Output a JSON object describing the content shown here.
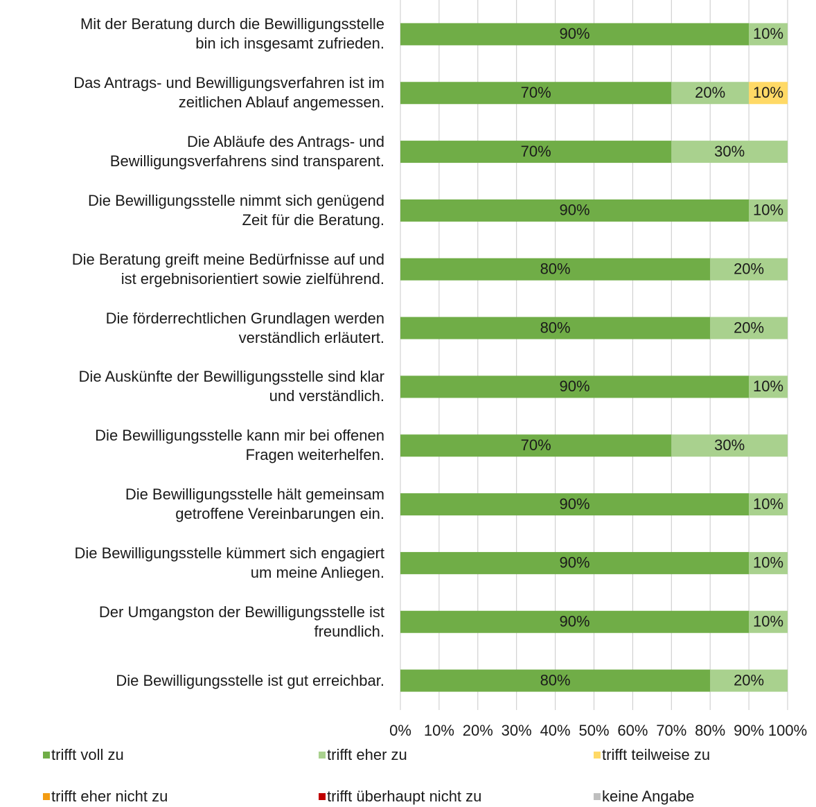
{
  "chart_data": {
    "type": "stacked-bar-horizontal",
    "categories": [
      "Mit der Beratung durch die Bewilligungsstelle\nbin ich insgesamt zufrieden.",
      "Das Antrags- und Bewilligungsverfahren ist im\nzeitlichen Ablauf angemessen.",
      "Die Abläufe des Antrags- und\nBewilligungsverfahrens sind transparent.",
      "Die Bewilligungsstelle nimmt sich genügend\nZeit für die Beratung.",
      "Die Beratung greift meine Bedürfnisse auf und\nist ergebnisorientiert sowie zielführend.",
      "Die förderrechtlichen Grundlagen werden\nverständlich erläutert.",
      "Die Auskünfte der Bewilligungsstelle sind klar\nund verständlich.",
      "Die Bewilligungsstelle kann mir bei offenen\nFragen weiterhelfen.",
      "Die Bewilligungsstelle hält gemeinsam\ngetroffene Vereinbarungen ein.",
      "Die Bewilligungsstelle kümmert sich engagiert\num meine Anliegen.",
      "Der Umgangston der Bewilligungsstelle ist\nfreundlich.",
      "Die Bewilligungsstelle ist gut erreichbar."
    ],
    "series": [
      {
        "name": "trifft voll zu",
        "color": "#70ad47",
        "values": [
          90,
          70,
          70,
          90,
          80,
          80,
          90,
          70,
          90,
          90,
          90,
          80
        ],
        "value_labels": [
          "90%",
          "70%",
          "70%",
          "90%",
          "80%",
          "80%",
          "90%",
          "70%",
          "90%",
          "90%",
          "90%",
          "80%"
        ]
      },
      {
        "name": "trifft eher zu",
        "color": "#a9d18e",
        "values": [
          10,
          20,
          30,
          10,
          20,
          20,
          10,
          30,
          10,
          10,
          10,
          20
        ],
        "value_labels": [
          "10%",
          "20%",
          "30%",
          "10%",
          "20%",
          "20%",
          "10%",
          "30%",
          "10%",
          "10%",
          "10%",
          "20%"
        ]
      },
      {
        "name": "trifft teilweise zu",
        "color": "#ffd966",
        "values": [
          0,
          10,
          0,
          0,
          0,
          0,
          0,
          0,
          0,
          0,
          0,
          0
        ],
        "value_labels": [
          null,
          "10%",
          null,
          null,
          null,
          null,
          null,
          null,
          null,
          null,
          null,
          null
        ]
      },
      {
        "name": "trifft eher nicht zu",
        "color": "#f39c12",
        "values": [
          0,
          0,
          0,
          0,
          0,
          0,
          0,
          0,
          0,
          0,
          0,
          0
        ]
      },
      {
        "name": "trifft überhaupt nicht zu",
        "color": "#c00000",
        "values": [
          0,
          0,
          0,
          0,
          0,
          0,
          0,
          0,
          0,
          0,
          0,
          0
        ]
      },
      {
        "name": "keine Angabe",
        "color": "#bfbfbf",
        "values": [
          0,
          0,
          0,
          0,
          0,
          0,
          0,
          0,
          0,
          0,
          0,
          0
        ]
      }
    ],
    "xlim": [
      0,
      100
    ],
    "xticks": [
      {
        "value": 0,
        "label": "0%"
      },
      {
        "value": 10,
        "label": "10%"
      },
      {
        "value": 20,
        "label": "20%"
      },
      {
        "value": 30,
        "label": "30%"
      },
      {
        "value": 40,
        "label": "40%"
      },
      {
        "value": 50,
        "label": "50%"
      },
      {
        "value": 60,
        "label": "60%"
      },
      {
        "value": 70,
        "label": "70%"
      },
      {
        "value": 80,
        "label": "80%"
      },
      {
        "value": 90,
        "label": "90%"
      },
      {
        "value": 100,
        "label": "100%"
      }
    ],
    "grid": true,
    "legend": "bottom"
  }
}
